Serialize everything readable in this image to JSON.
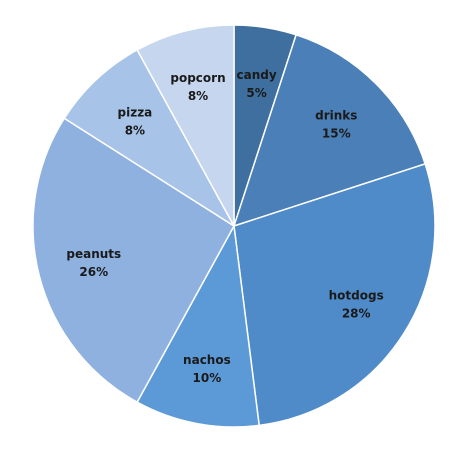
{
  "chart_data": {
    "type": "pie",
    "title": "",
    "start_angle_deg": 0,
    "direction": "clockwise",
    "slices": [
      {
        "label": "candy",
        "value": 5,
        "value_label": "5%",
        "color": "#3f6f9f"
      },
      {
        "label": "drinks",
        "value": 15,
        "value_label": "15%",
        "color": "#4a7fb7"
      },
      {
        "label": "hotdogs",
        "value": 28,
        "value_label": "28%",
        "color": "#4f8bc9"
      },
      {
        "label": "nachos",
        "value": 10,
        "value_label": "10%",
        "color": "#5b9ad6"
      },
      {
        "label": "peanuts",
        "value": 26,
        "value_label": "26%",
        "color": "#8eb1e0"
      },
      {
        "label": "pizza",
        "value": 8,
        "value_label": "8%",
        "color": "#a8c3e8"
      },
      {
        "label": "popcorn",
        "value": 8,
        "value_label": "8%",
        "color": "#c6d6ef"
      }
    ]
  }
}
